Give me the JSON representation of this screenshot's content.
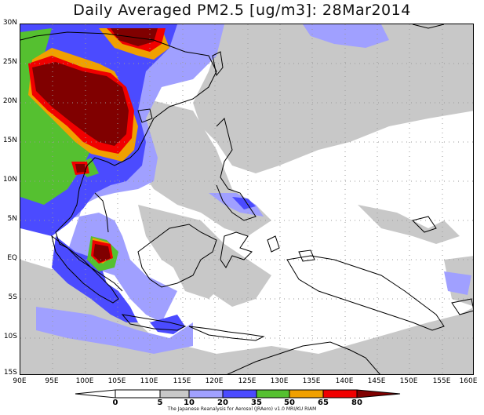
{
  "title": "Daily Averaged PM2.5 [ug/m3]: 28Mar2014",
  "credit": "The Japanese Reanalysis for Aerosol (JRAero) v1.0 MRI/KU RIAM",
  "y_axis": [
    "30N",
    "25N",
    "20N",
    "15N",
    "10N",
    "5N",
    "EQ",
    "5S",
    "10S",
    "15S"
  ],
  "x_axis": [
    "90E",
    "95E",
    "100E",
    "105E",
    "110E",
    "115E",
    "120E",
    "125E",
    "130E",
    "135E",
    "140E",
    "145E",
    "150E",
    "155E",
    "160E"
  ],
  "legend": {
    "labels": [
      "0",
      "5",
      "10",
      "20",
      "35",
      "50",
      "65",
      "80"
    ],
    "colors": [
      "#ffffff",
      "#ffffff",
      "#c8c8c8",
      "#a0a0ff",
      "#4b4bff",
      "#55c030",
      "#f0a000",
      "#f00000",
      "#800000"
    ]
  },
  "layer_colors": {
    "gray": "#c8c8c8",
    "light_blue": "#a0a0ff",
    "blue": "#4b4bff",
    "green": "#55c030",
    "orange": "#f0a000",
    "red": "#f00000",
    "maroon": "#800000"
  }
}
